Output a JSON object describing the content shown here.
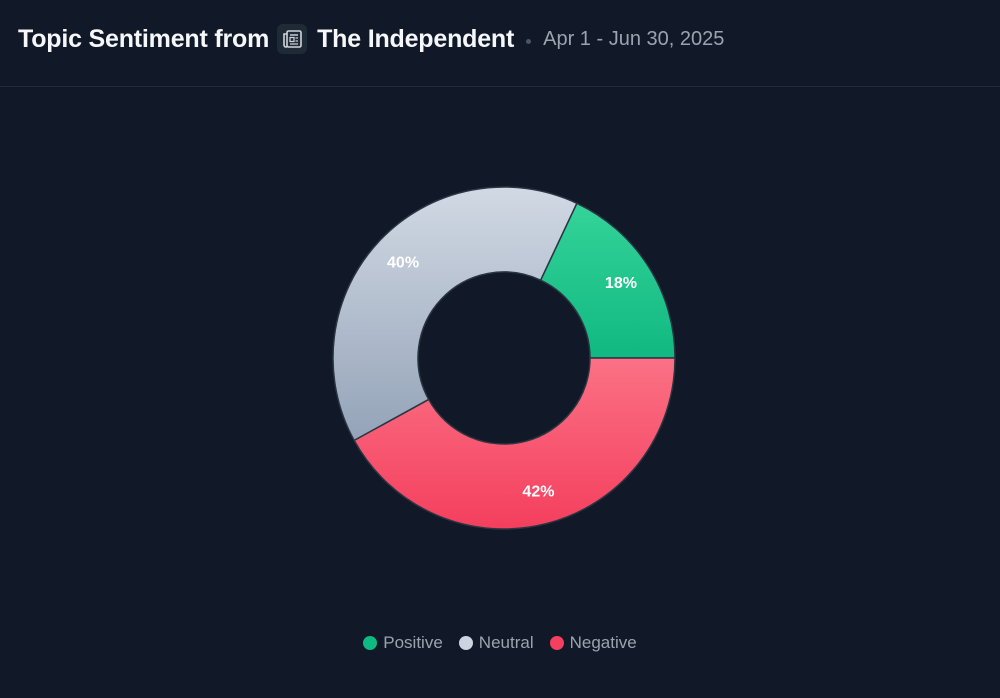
{
  "header": {
    "title_prefix": "Topic Sentiment from",
    "source_icon": "newspaper-icon",
    "source_name": "The Independent",
    "date_range": "Apr 1 - Jun 30, 2025"
  },
  "chart_data": {
    "type": "pie",
    "variant": "donut",
    "slices": [
      {
        "name": "Positive",
        "value": 18,
        "label": "18%",
        "color": "#10b981"
      },
      {
        "name": "Negative",
        "value": 42,
        "label": "42%",
        "color": "#f43f5e"
      },
      {
        "name": "Neutral",
        "value": 40,
        "label": "40%",
        "color": "#cbd5e1"
      }
    ],
    "legend": {
      "placement": "bottom-center",
      "entries": [
        {
          "name": "Positive",
          "color": "#10b981"
        },
        {
          "name": "Neutral",
          "color": "#cbd5e1"
        },
        {
          "name": "Negative",
          "color": "#f43f5e"
        }
      ]
    }
  }
}
